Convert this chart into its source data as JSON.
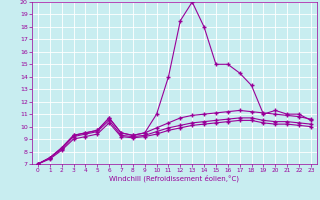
{
  "xlabel": "Windchill (Refroidissement éolien,°C)",
  "x_values": [
    0,
    1,
    2,
    3,
    4,
    5,
    6,
    7,
    8,
    9,
    10,
    11,
    12,
    13,
    14,
    15,
    16,
    17,
    18,
    19,
    20,
    21,
    22,
    23
  ],
  "line_spike": [
    7.0,
    7.5,
    8.3,
    9.3,
    9.5,
    9.7,
    10.7,
    9.5,
    9.3,
    9.5,
    11.0,
    14.0,
    18.5,
    20.0,
    18.0,
    15.0,
    15.0,
    14.3,
    13.3,
    11.0,
    11.3,
    11.0,
    11.0,
    10.5
  ],
  "line_high": [
    7.0,
    7.5,
    8.3,
    9.3,
    9.5,
    9.7,
    10.7,
    9.5,
    9.3,
    9.5,
    9.9,
    10.3,
    10.7,
    10.9,
    11.0,
    11.1,
    11.2,
    11.3,
    11.2,
    11.1,
    11.0,
    10.9,
    10.8,
    10.6
  ],
  "line_mid": [
    7.0,
    7.5,
    8.2,
    9.2,
    9.4,
    9.6,
    10.5,
    9.3,
    9.2,
    9.3,
    9.6,
    9.9,
    10.1,
    10.3,
    10.4,
    10.5,
    10.6,
    10.7,
    10.7,
    10.5,
    10.4,
    10.4,
    10.3,
    10.2
  ],
  "line_low": [
    7.0,
    7.4,
    8.1,
    9.0,
    9.2,
    9.4,
    10.3,
    9.2,
    9.1,
    9.2,
    9.4,
    9.7,
    9.9,
    10.1,
    10.2,
    10.3,
    10.4,
    10.5,
    10.5,
    10.3,
    10.2,
    10.2,
    10.1,
    10.0
  ],
  "line_color": "#990099",
  "bg_color": "#c8edf0",
  "grid_color": "#ffffff",
  "ylim": [
    7,
    20
  ],
  "yticks": [
    7,
    8,
    9,
    10,
    11,
    12,
    13,
    14,
    15,
    16,
    17,
    18,
    19,
    20
  ],
  "xticks": [
    0,
    1,
    2,
    3,
    4,
    5,
    6,
    7,
    8,
    9,
    10,
    11,
    12,
    13,
    14,
    15,
    16,
    17,
    18,
    19,
    20,
    21,
    22,
    23
  ],
  "marker": "+"
}
